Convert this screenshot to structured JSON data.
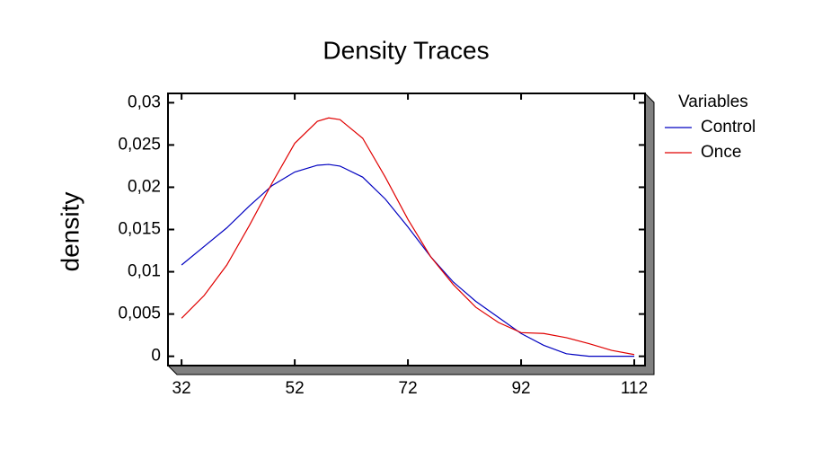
{
  "chart_data": {
    "type": "line",
    "title": "Density Traces",
    "y_label": "density",
    "legend_title": "Variables",
    "x": [
      32,
      36,
      40,
      44,
      48,
      52,
      56,
      58,
      60,
      64,
      68,
      72,
      76,
      80,
      84,
      88,
      92,
      96,
      100,
      104,
      108,
      112
    ],
    "series": [
      {
        "name": "Control",
        "color": "#0000c0",
        "values": [
          0.0108,
          0.013,
          0.0152,
          0.0178,
          0.0202,
          0.0218,
          0.0226,
          0.0227,
          0.0225,
          0.0212,
          0.0186,
          0.0153,
          0.0118,
          0.0088,
          0.0065,
          0.0046,
          0.0027,
          0.0013,
          0.0003,
          0,
          0,
          0
        ]
      },
      {
        "name": "Once",
        "color": "#e00000",
        "values": [
          0.0045,
          0.0072,
          0.0108,
          0.0155,
          0.0205,
          0.0252,
          0.0278,
          0.0282,
          0.028,
          0.0258,
          0.0212,
          0.0162,
          0.0118,
          0.0085,
          0.0058,
          0.004,
          0.0028,
          0.0027,
          0.0022,
          0.0015,
          0.0007,
          0.0002
        ]
      }
    ],
    "xlim": [
      29.6,
      113.9
    ],
    "xticks": [
      32,
      52,
      72,
      92,
      112
    ],
    "ylim": [
      -0.0011,
      0.0311
    ],
    "yticks": [
      0,
      {
        "value": 0.005,
        "label": "0,005"
      },
      {
        "value": 0.01,
        "label": "0,01"
      },
      {
        "value": 0.015,
        "label": "0,015"
      },
      {
        "value": 0.02,
        "label": "0,02"
      },
      {
        "value": 0.025,
        "label": "0,025"
      },
      {
        "value": 0.03,
        "label": "0,03"
      }
    ],
    "legend": "right"
  }
}
